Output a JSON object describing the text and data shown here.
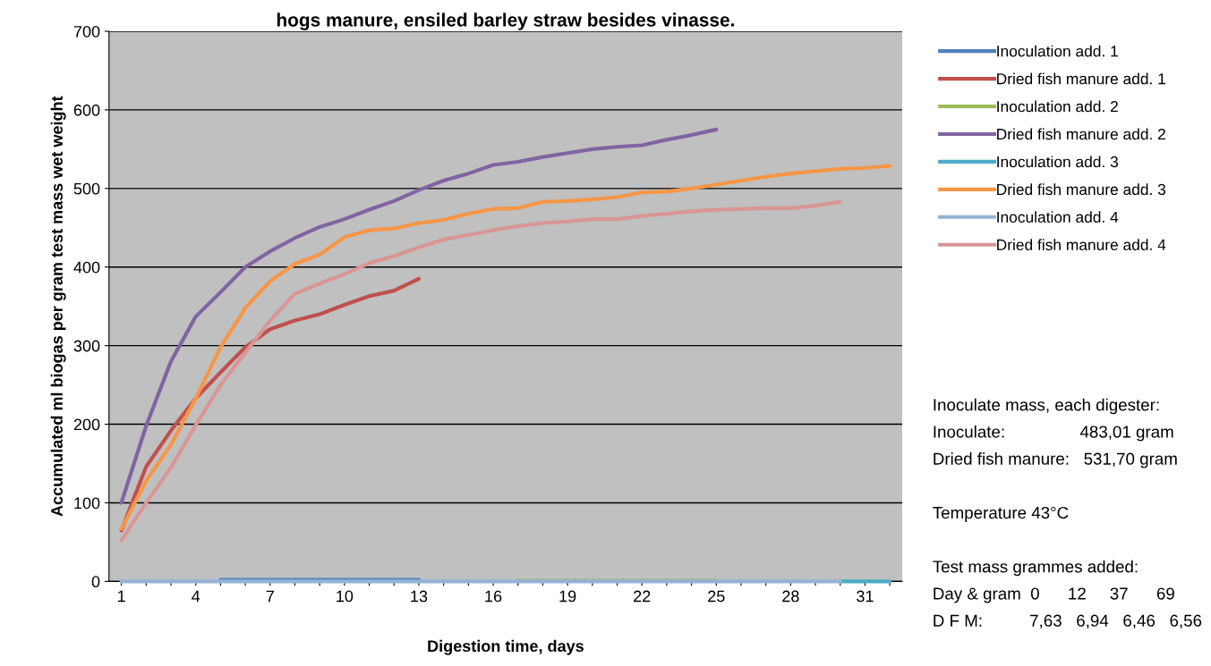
{
  "chart_data": {
    "type": "line",
    "title": "hogs manure, ensiled barley straw besides vinasse.",
    "xlabel": "Digestion time, days",
    "ylabel": "Accumulated ml biogas per gram test mass wet weight",
    "categories": [
      "1",
      null,
      null,
      "4",
      null,
      null,
      "7",
      null,
      null,
      "10",
      null,
      null,
      "13",
      null,
      null,
      "16",
      null,
      null,
      "19",
      null,
      null,
      "22",
      null,
      null,
      "25",
      null,
      null,
      "28",
      null,
      null,
      "31",
      null
    ],
    "ylim": [
      0,
      700
    ],
    "yticks": [
      0,
      100,
      200,
      300,
      400,
      500,
      600,
      700
    ],
    "grid": "y",
    "legend": "right",
    "marker": "none",
    "line_style": "solid",
    "series": [
      {
        "name": "Inoculation add. 1",
        "color": "#4f81bd",
        "values": [
          null,
          null,
          null,
          null,
          2,
          2,
          2,
          2,
          2,
          2,
          2,
          2,
          2,
          null,
          null,
          null,
          null,
          null,
          null,
          null,
          null,
          null,
          null,
          null,
          null,
          null,
          null,
          null,
          null,
          null,
          null,
          null
        ]
      },
      {
        "name": "Dried fish manure add. 1",
        "color": "#c0504d",
        "values": [
          65,
          146,
          192,
          233,
          266,
          298,
          321,
          332,
          340,
          352,
          363,
          370,
          385,
          null,
          null,
          null,
          null,
          null,
          null,
          null,
          null,
          null,
          null,
          null,
          null,
          null,
          null,
          null,
          null,
          null,
          null,
          null
        ]
      },
      {
        "name": "Inoculation add. 2",
        "color": "#9bbb59",
        "values": [
          null,
          null,
          null,
          null,
          null,
          null,
          null,
          null,
          null,
          null,
          null,
          null,
          null,
          null,
          null,
          null,
          1,
          1,
          1,
          1,
          1,
          1,
          1,
          1,
          1,
          null,
          null,
          null,
          null,
          null,
          null,
          null
        ]
      },
      {
        "name": "Dried fish manure add. 2",
        "color": "#8064a2",
        "values": [
          100,
          198,
          280,
          337,
          368,
          400,
          420,
          437,
          451,
          461,
          473,
          484,
          498,
          510,
          519,
          530,
          534,
          540,
          545,
          550,
          553,
          555,
          562,
          568,
          575,
          null,
          null,
          null,
          null,
          null,
          null,
          null
        ]
      },
      {
        "name": "Inoculation add. 3",
        "color": "#4bacc6",
        "values": [
          null,
          null,
          null,
          null,
          null,
          null,
          null,
          null,
          null,
          null,
          null,
          null,
          null,
          null,
          null,
          null,
          null,
          null,
          null,
          null,
          null,
          null,
          null,
          null,
          null,
          null,
          null,
          null,
          null,
          0,
          0,
          0
        ]
      },
      {
        "name": "Dried fish manure add. 3",
        "color": "#f79646",
        "values": [
          67,
          128,
          174,
          233,
          298,
          348,
          382,
          404,
          416,
          438,
          447,
          449,
          456,
          460,
          468,
          474,
          475,
          483,
          484,
          486,
          489,
          495,
          496,
          500,
          505,
          510,
          515,
          519,
          522,
          525,
          526,
          529
        ]
      },
      {
        "name": "Inoculation add. 4",
        "color": "#95b3d7",
        "values": [
          0,
          0,
          0,
          0,
          0,
          0,
          0,
          0,
          0,
          0,
          0,
          0,
          0,
          0,
          0,
          0,
          0,
          0,
          0,
          0,
          0,
          0,
          0,
          0,
          0,
          0,
          0,
          0,
          0,
          0,
          null,
          null
        ]
      },
      {
        "name": "Dried fish manure add. 4",
        "color": "#d99694",
        "values": [
          52,
          100,
          145,
          199,
          250,
          291,
          332,
          366,
          379,
          391,
          405,
          414,
          425,
          435,
          441,
          447,
          452,
          456,
          458,
          461,
          461,
          465,
          468,
          471,
          473,
          474,
          475,
          475,
          478,
          483,
          null,
          null
        ]
      }
    ],
    "annotations": [
      "Inoculate mass, each digester:",
      "Inoculate:                483,01 gram",
      "Dried fish manure:   531,70 gram",
      "Temperature 43°C",
      "Test mass grammes added:",
      "Day & gram  0      12     37      69",
      "D F M:          7,63   6,94   6,46   6,56"
    ]
  }
}
